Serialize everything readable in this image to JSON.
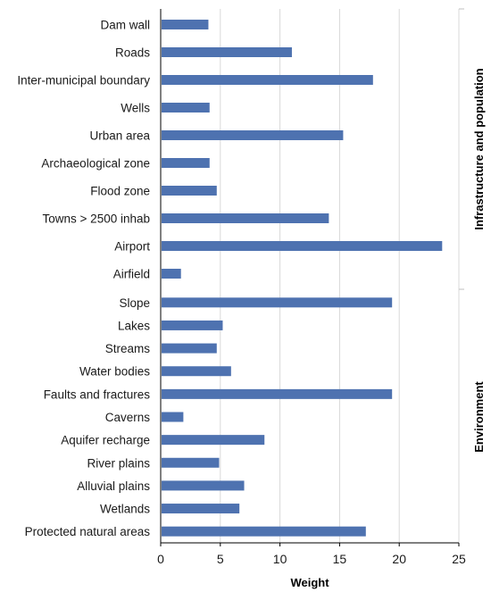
{
  "chart_data": {
    "type": "bar",
    "orientation": "horizontal",
    "xlabel": "Weight",
    "xlim": [
      0,
      25
    ],
    "xticks": [
      0,
      5,
      10,
      15,
      20,
      25
    ],
    "grid": true,
    "bar_color": "#4e72b0",
    "grid_color": "#d9d9d9",
    "panels": [
      {
        "label": "Infrastructure and population",
        "categories": [
          "Dam wall",
          "Roads",
          "Inter-municipal boundary",
          "Wells",
          "Urban area",
          "Archaeological zone",
          "Flood zone",
          "Towns > 2500 inhab",
          "Airport",
          "Airfield"
        ],
        "values": [
          4.0,
          11.0,
          17.8,
          4.1,
          15.3,
          4.1,
          4.7,
          14.1,
          23.6,
          1.7
        ]
      },
      {
        "label": "Environment",
        "categories": [
          "Slope",
          "Lakes",
          "Streams",
          "Water bodies",
          "Faults and fractures",
          "Caverns",
          "Aquifer recharge",
          "River plains",
          "Alluvial plains",
          "Wetlands",
          "Protected natural areas"
        ],
        "values": [
          19.4,
          5.2,
          4.7,
          5.9,
          19.4,
          1.9,
          8.7,
          4.9,
          7.0,
          6.6,
          17.2
        ]
      }
    ]
  }
}
